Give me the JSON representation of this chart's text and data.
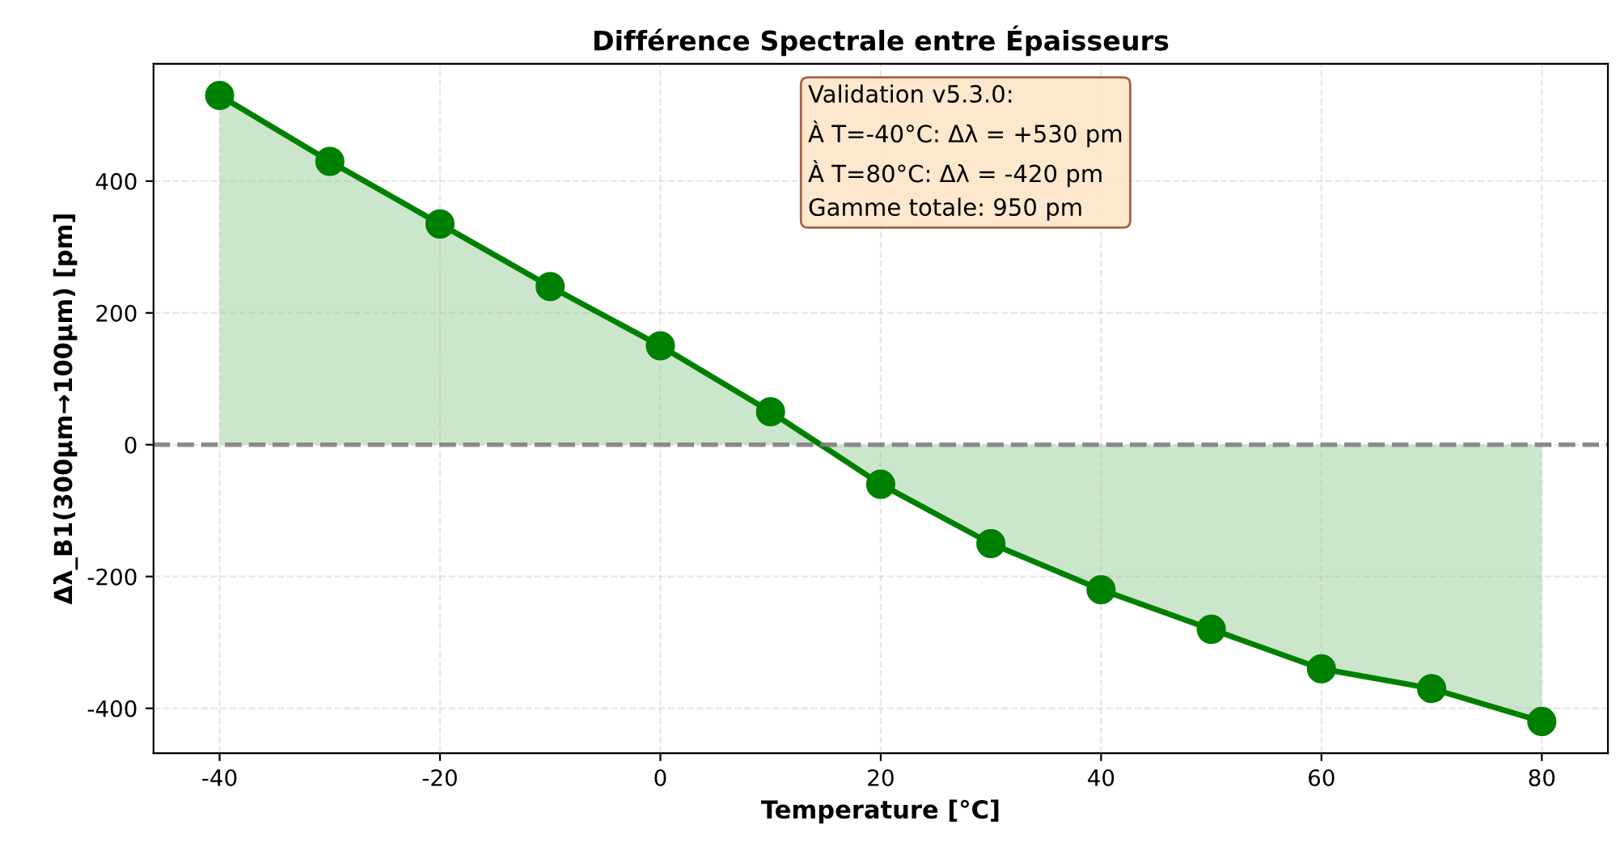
{
  "chart_data": {
    "type": "area",
    "title": "Différence Spectrale entre Épaisseurs",
    "xlabel": "Temperature [°C]",
    "ylabel": "Δλ_B1(300μm→100μm) [pm]",
    "x": [
      -40,
      -30,
      -20,
      -10,
      0,
      10,
      20,
      30,
      40,
      50,
      60,
      70,
      80
    ],
    "series": [
      {
        "color": "#008000",
        "values": [
          530,
          430,
          335,
          240,
          150,
          50,
          -60,
          -150,
          -220,
          -280,
          -340,
          -370,
          -420
        ]
      }
    ],
    "xlim": [
      -46,
      86
    ],
    "ylim": [
      -468,
      578
    ],
    "xticks": [
      -40,
      -20,
      0,
      20,
      40,
      60,
      80
    ],
    "yticks": [
      -400,
      -200,
      0,
      200,
      400
    ],
    "grid": true,
    "marker": "circle",
    "line_style": "solid",
    "legend": false,
    "ref_lines": [
      {
        "axis": "y",
        "value": 0,
        "color": "#808080",
        "line_style": "dashed"
      }
    ],
    "annotations": [
      "Validation v5.3.0:\nÀ T=-40°C: Δλ = +530 pm\nÀ T=80°C: Δλ = -420 pm\nGamme totale: 950 pm"
    ]
  }
}
